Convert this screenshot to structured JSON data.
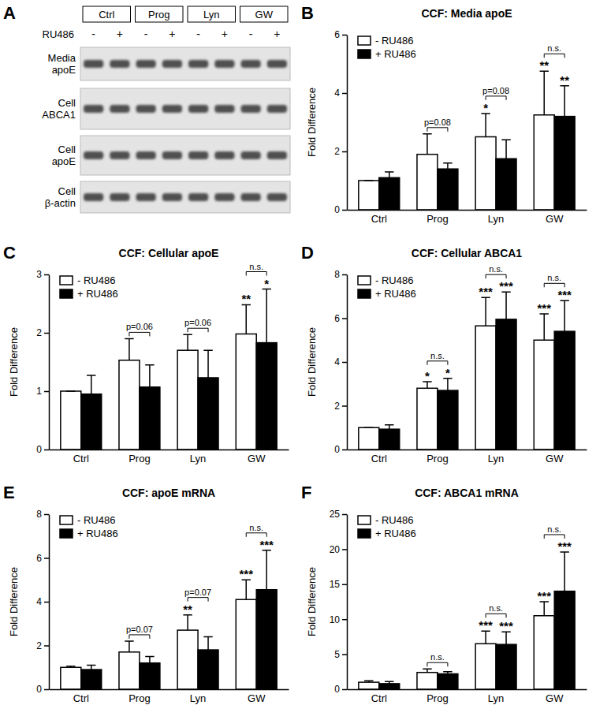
{
  "chart_data": [
    {
      "type": "blot",
      "panel": "A",
      "categories": [
        "Ctrl",
        "Prog",
        "Lyn",
        "GW"
      ],
      "treatment_label": "RU486",
      "treatment": [
        "-",
        "+"
      ],
      "rows": [
        "Media apoE",
        "Cell ABCA1",
        "Cell apoE",
        "Cell β-actin"
      ]
    },
    {
      "type": "bar",
      "panel": "B",
      "title": "CCF: Media apoE",
      "ylabel": "Fold Difference",
      "categories": [
        "Ctrl",
        "Prog",
        "Lyn",
        "GW"
      ],
      "series": [
        {
          "name": "- RU486",
          "color": "#ffffff",
          "values": [
            1,
            1.9,
            2.5,
            3.25
          ],
          "errors": [
            0,
            0.7,
            0.8,
            1.5
          ],
          "significance": [
            null,
            null,
            "*",
            "**"
          ]
        },
        {
          "name": "+ RU486",
          "color": "#000000",
          "values": [
            1.1,
            1.4,
            1.75,
            3.2
          ],
          "errors": [
            0.2,
            0.2,
            0.65,
            1.05
          ],
          "significance": [
            null,
            null,
            null,
            "**"
          ]
        }
      ],
      "brackets": [
        {
          "category": "Prog",
          "text": "p=0.08"
        },
        {
          "category": "Lyn",
          "text": "p=0.08"
        },
        {
          "category": "GW",
          "text": "n.s."
        }
      ],
      "ylim": [
        0,
        6
      ],
      "yticks": [
        0,
        2,
        4,
        6
      ],
      "grid": false,
      "legend": "upper left"
    },
    {
      "type": "bar",
      "panel": "C",
      "title": "CCF: Cellular apoE",
      "ylabel": "Fold Difference",
      "categories": [
        "Ctrl",
        "Prog",
        "Lyn",
        "GW"
      ],
      "series": [
        {
          "name": "- RU486",
          "color": "#ffffff",
          "values": [
            1,
            1.53,
            1.7,
            1.98
          ],
          "errors": [
            0,
            0.37,
            0.27,
            0.5
          ],
          "significance": [
            null,
            null,
            null,
            "**"
          ]
        },
        {
          "name": "+ RU486",
          "color": "#000000",
          "values": [
            0.95,
            1.07,
            1.23,
            1.83
          ],
          "errors": [
            0.32,
            0.38,
            0.47,
            0.92
          ],
          "significance": [
            null,
            null,
            null,
            "*"
          ]
        }
      ],
      "brackets": [
        {
          "category": "Prog",
          "text": "p=0.06"
        },
        {
          "category": "Lyn",
          "text": "p=0.06"
        },
        {
          "category": "GW",
          "text": "n.s."
        }
      ],
      "ylim": [
        0,
        3
      ],
      "yticks": [
        0,
        1,
        2,
        3
      ],
      "grid": false,
      "legend": "upper left"
    },
    {
      "type": "bar",
      "panel": "D",
      "title": "CCF: Cellular ABCA1",
      "ylabel": "Fold Difference",
      "categories": [
        "Ctrl",
        "Prog",
        "Lyn",
        "GW"
      ],
      "series": [
        {
          "name": "- RU486",
          "color": "#ffffff",
          "values": [
            1,
            2.8,
            5.65,
            5.0
          ],
          "errors": [
            0,
            0.3,
            1.3,
            1.2
          ],
          "significance": [
            null,
            "*",
            "***",
            "***"
          ]
        },
        {
          "name": "+ RU486",
          "color": "#000000",
          "values": [
            0.93,
            2.7,
            5.95,
            5.4
          ],
          "errors": [
            0.2,
            0.55,
            1.25,
            1.4
          ],
          "significance": [
            null,
            "*",
            "***",
            "***"
          ]
        }
      ],
      "brackets": [
        {
          "category": "Prog",
          "text": "n.s."
        },
        {
          "category": "Lyn",
          "text": "n.s."
        },
        {
          "category": "GW",
          "text": "n.s."
        }
      ],
      "ylim": [
        0,
        8
      ],
      "yticks": [
        0,
        2,
        4,
        6,
        8
      ],
      "grid": false,
      "legend": "upper left"
    },
    {
      "type": "bar",
      "panel": "E",
      "title": "CCF: apoE mRNA",
      "ylabel": "Fold Difference",
      "categories": [
        "Ctrl",
        "Prog",
        "Lyn",
        "GW"
      ],
      "series": [
        {
          "name": "- RU486",
          "color": "#ffffff",
          "values": [
            1,
            1.7,
            2.7,
            4.1
          ],
          "errors": [
            0.05,
            0.5,
            0.7,
            0.9
          ],
          "significance": [
            null,
            null,
            "**",
            "***"
          ]
        },
        {
          "name": "+ RU486",
          "color": "#000000",
          "values": [
            0.9,
            1.2,
            1.8,
            4.55
          ],
          "errors": [
            0.2,
            0.3,
            0.6,
            1.8
          ],
          "significance": [
            null,
            null,
            null,
            "***"
          ]
        }
      ],
      "brackets": [
        {
          "category": "Prog",
          "text": "p=0.07"
        },
        {
          "category": "Lyn",
          "text": "p=0.07"
        },
        {
          "category": "GW",
          "text": "n.s."
        }
      ],
      "ylim": [
        0,
        8
      ],
      "yticks": [
        0,
        2,
        4,
        6,
        8
      ],
      "grid": false,
      "legend": "upper left"
    },
    {
      "type": "bar",
      "panel": "F",
      "title": "CCF: ABCA1 mRNA",
      "ylabel": "Fold Difference",
      "categories": [
        "Ctrl",
        "Prog",
        "Lyn",
        "GW"
      ],
      "series": [
        {
          "name": "- RU486",
          "color": "#ffffff",
          "values": [
            1.0,
            2.4,
            6.5,
            10.5
          ],
          "errors": [
            0.2,
            0.5,
            1.8,
            2.0
          ],
          "significance": [
            null,
            null,
            "***",
            "***"
          ]
        },
        {
          "name": "+ RU486",
          "color": "#000000",
          "values": [
            0.8,
            2.2,
            6.4,
            14.0
          ],
          "errors": [
            0.3,
            0.3,
            1.8,
            5.6
          ],
          "significance": [
            null,
            null,
            "***",
            "***"
          ]
        }
      ],
      "brackets": [
        {
          "category": "Prog",
          "text": "n.s."
        },
        {
          "category": "Lyn",
          "text": "n.s."
        },
        {
          "category": "GW",
          "text": "n.s."
        }
      ],
      "ylim": [
        0,
        25
      ],
      "yticks": [
        0,
        5,
        10,
        15,
        20,
        25
      ],
      "grid": false,
      "legend": "upper left"
    }
  ]
}
